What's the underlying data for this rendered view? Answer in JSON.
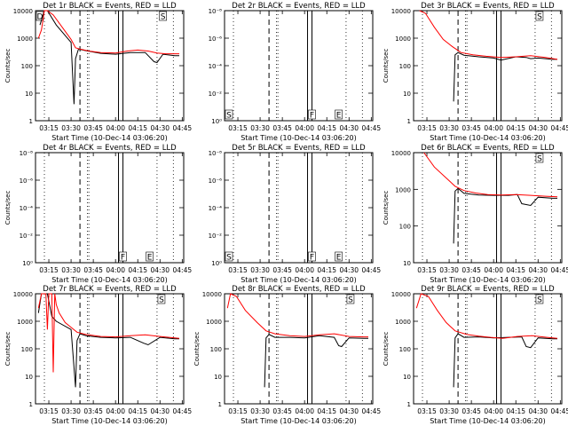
{
  "chart_data": [
    {
      "type": "line",
      "title": "Det 1r BLACK = Events, RED = LLD",
      "xlabel": "Start Time (10-Dec-14 03:06:20)",
      "ylabel": "Counts/sec",
      "ytick_labels": [
        "1",
        "10",
        "100",
        "1000",
        "10000"
      ],
      "yscale": "log",
      "ylim": [
        1,
        10000
      ],
      "xtick_labels": [
        "03:15",
        "03:30",
        "03:45",
        "04:00",
        "04:15",
        "04:30",
        "04:45"
      ],
      "flags": [
        {
          "label": "D",
          "t": "03:06"
        },
        {
          "label": "S",
          "t": "04:29"
        }
      ],
      "series": [
        {
          "color": "#000000",
          "x": [
            "03:09",
            "03:12",
            "03:14",
            "03:20",
            "03:30",
            "03:32",
            "03:33",
            "03:35",
            "03:40",
            "03:50",
            "04:00",
            "04:10",
            "04:20",
            "04:26",
            "04:28",
            "04:32",
            "04:40",
            "04:43"
          ],
          "y": [
            3000,
            10000,
            10000,
            3000,
            700,
            4,
            180,
            400,
            350,
            280,
            260,
            300,
            300,
            140,
            130,
            260,
            230,
            230
          ]
        },
        {
          "color": "#ff0000",
          "x": [
            "03:08",
            "03:10",
            "03:12",
            "03:14",
            "03:18",
            "03:24",
            "03:30",
            "03:33",
            "03:36",
            "03:42",
            "03:50",
            "04:00",
            "04:08",
            "04:15",
            "04:22",
            "04:28",
            "04:34",
            "04:40",
            "04:43"
          ],
          "y": [
            1000,
            2000,
            10000,
            10000,
            7000,
            2500,
            900,
            450,
            400,
            340,
            300,
            290,
            340,
            370,
            340,
            290,
            270,
            270,
            270
          ]
        }
      ]
    },
    {
      "type": "line",
      "title": "Det 2r BLACK = Events, RED = LLD",
      "xlabel": "Start Time (10-Dec-14 03:06:20)",
      "ylabel": "",
      "ytick_labels": [
        "10⁰",
        "10⁻²",
        "10⁻⁴",
        "10⁻⁶",
        "10⁻⁸"
      ],
      "yscale": "log",
      "xtick_labels": [
        "03:15",
        "03:30",
        "03:45",
        "04:00",
        "04:15",
        "04:30",
        "04:45"
      ],
      "flags": [
        {
          "label": "S",
          "t": "03:06"
        },
        {
          "label": "F",
          "t": "04:02"
        },
        {
          "label": "E",
          "t": "04:20"
        }
      ],
      "series": []
    },
    {
      "type": "line",
      "title": "Det 3r BLACK = Events, RED = LLD",
      "xlabel": "Start Time (10-Dec-14 03:06:20)",
      "ylabel": "Counts/sec",
      "ytick_labels": [
        "1",
        "10",
        "100",
        "1000",
        "10000"
      ],
      "yscale": "log",
      "ylim": [
        1,
        10000
      ],
      "xtick_labels": [
        "03:15",
        "03:30",
        "03:45",
        "04:00",
        "04:15",
        "04:30",
        "04:45"
      ],
      "flags": [
        {
          "label": "S",
          "t": "04:28"
        }
      ],
      "series": [
        {
          "color": "#000000",
          "x": [
            "03:33",
            "03:34",
            "03:36",
            "03:40",
            "03:50",
            "04:00",
            "04:05",
            "04:15",
            "04:22",
            "04:25",
            "04:30",
            "04:40",
            "04:43"
          ],
          "y": [
            5,
            250,
            300,
            240,
            210,
            190,
            160,
            210,
            200,
            180,
            190,
            170,
            170
          ]
        },
        {
          "color": "#ff0000",
          "x": [
            "03:10",
            "03:14",
            "03:20",
            "03:26",
            "03:32",
            "03:38",
            "03:46",
            "03:55",
            "04:05",
            "04:15",
            "04:25",
            "04:35",
            "04:43"
          ],
          "y": [
            10000,
            8000,
            2500,
            900,
            500,
            300,
            250,
            220,
            200,
            210,
            230,
            200,
            170
          ]
        }
      ]
    },
    {
      "type": "line",
      "title": "Det 4r BLACK = Events, RED = LLD",
      "xlabel": "Start Time (10-Dec-14 03:06:20)",
      "ylabel": "Counts/sec",
      "ytick_labels": [
        "10⁰",
        "10⁻²",
        "10⁻⁴",
        "10⁻⁶",
        "10⁻⁸"
      ],
      "yscale": "log",
      "xtick_labels": [
        "03:15",
        "03:30",
        "03:45",
        "04:00",
        "04:15",
        "04:30",
        "04:45"
      ],
      "flags": [
        {
          "label": "F",
          "t": "04:02"
        },
        {
          "label": "E",
          "t": "04:20"
        }
      ],
      "series": []
    },
    {
      "type": "line",
      "title": "Det 5r BLACK = Events, RED = LLD",
      "xlabel": "Start Time (10-Dec-14 03:06:20)",
      "ylabel": "",
      "ytick_labels": [
        "10⁰",
        "10⁻²",
        "10⁻⁴",
        "10⁻⁶",
        "10⁻⁸"
      ],
      "yscale": "log",
      "xtick_labels": [
        "03:15",
        "03:30",
        "03:45",
        "04:00",
        "04:15",
        "04:30",
        "04:45"
      ],
      "flags": [
        {
          "label": "S",
          "t": "03:06"
        },
        {
          "label": "F",
          "t": "04:02"
        },
        {
          "label": "E",
          "t": "04:20"
        }
      ],
      "series": []
    },
    {
      "type": "line",
      "title": "Det 6r BLACK = Events, RED = LLD",
      "xlabel": "Start Time (10-Dec-14 03:06:20)",
      "ylabel": "Counts/sec",
      "ytick_labels": [
        "10",
        "100",
        "1000",
        "10000"
      ],
      "yscale": "log",
      "ylim": [
        1,
        10000
      ],
      "xtick_labels": [
        "03:15",
        "03:30",
        "03:45",
        "04:00",
        "04:15",
        "04:30",
        "04:45"
      ],
      "flags": [
        {
          "label": "S",
          "t": "04:28"
        }
      ],
      "series": [
        {
          "color": "#000000",
          "x": [
            "03:33",
            "03:34",
            "03:36",
            "03:40",
            "03:50",
            "04:00",
            "04:10",
            "04:16",
            "04:19",
            "04:25",
            "04:30",
            "04:40",
            "04:43"
          ],
          "y": [
            5,
            400,
            500,
            330,
            290,
            280,
            280,
            300,
            140,
            120,
            240,
            220,
            220
          ]
        },
        {
          "color": "#ff0000",
          "x": [
            "03:13",
            "03:20",
            "03:28",
            "03:34",
            "03:40",
            "03:48",
            "03:56",
            "04:05",
            "04:15",
            "04:25",
            "04:35",
            "04:43"
          ],
          "y": [
            10000,
            3000,
            1200,
            600,
            420,
            340,
            300,
            290,
            300,
            280,
            260,
            250
          ]
        }
      ]
    },
    {
      "type": "line",
      "title": "Det 7r BLACK = Events, RED = LLD",
      "xlabel": "Start Time (10-Dec-14 03:06:20)",
      "ylabel": "Counts/sec",
      "ytick_labels": [
        "1",
        "10",
        "100",
        "1000",
        "10000"
      ],
      "yscale": "log",
      "ylim": [
        1,
        10000
      ],
      "xtick_labels": [
        "03:15",
        "03:30",
        "03:45",
        "04:00",
        "04:15",
        "04:30",
        "04:45"
      ],
      "flags": [
        {
          "label": "S",
          "t": "04:28"
        }
      ],
      "series": [
        {
          "color": "#000000",
          "x": [
            "03:08",
            "03:10",
            "03:11",
            "03:14",
            "03:17",
            "03:20",
            "03:30",
            "03:33",
            "03:34",
            "03:36",
            "03:40",
            "03:50",
            "04:00",
            "04:10",
            "04:19",
            "04:22",
            "04:30",
            "04:40",
            "04:43"
          ],
          "y": [
            2000,
            10000,
            10000,
            10000,
            1500,
            1000,
            500,
            4,
            200,
            350,
            300,
            260,
            250,
            260,
            160,
            140,
            260,
            230,
            230
          ]
        },
        {
          "color": "#ff0000",
          "x": [
            "03:08",
            "03:10",
            "03:13",
            "03:14",
            "03:15",
            "03:16",
            "03:17",
            "03:18",
            "03:19",
            "03:20",
            "03:22",
            "03:26",
            "03:30",
            "03:34",
            "03:40",
            "03:50",
            "04:00",
            "04:10",
            "04:20",
            "04:30",
            "04:40",
            "04:43"
          ],
          "y": [
            3000,
            10000,
            10000,
            500,
            10000,
            10000,
            10000,
            14,
            10000,
            4000,
            2000,
            900,
            600,
            400,
            330,
            280,
            270,
            300,
            320,
            280,
            250,
            240
          ]
        }
      ]
    },
    {
      "type": "line",
      "title": "Det 8r BLACK = Events, RED = LLD",
      "xlabel": "Start Time (10-Dec-14 03:06:20)",
      "ylabel": "Counts/sec",
      "ytick_labels": [
        "1",
        "10",
        "100",
        "1000",
        "10000"
      ],
      "yscale": "log",
      "ylim": [
        1,
        10000
      ],
      "xtick_labels": [
        "03:15",
        "03:30",
        "03:45",
        "04:00",
        "04:15",
        "04:30",
        "04:45"
      ],
      "flags": [
        {
          "label": "S",
          "t": "04:28"
        }
      ],
      "series": [
        {
          "color": "#000000",
          "x": [
            "03:33",
            "03:34",
            "03:36",
            "03:40",
            "03:50",
            "04:00",
            "04:10",
            "04:20",
            "04:23",
            "04:25",
            "04:30",
            "04:40",
            "04:43"
          ],
          "y": [
            4,
            250,
            330,
            260,
            260,
            250,
            300,
            260,
            130,
            120,
            250,
            240,
            240
          ]
        },
        {
          "color": "#ff0000",
          "x": [
            "03:08",
            "03:10",
            "03:14",
            "03:20",
            "03:28",
            "03:34",
            "03:40",
            "03:50",
            "04:00",
            "04:10",
            "04:20",
            "04:30",
            "04:40",
            "04:43"
          ],
          "y": [
            3000,
            10000,
            8000,
            2500,
            900,
            450,
            350,
            300,
            280,
            320,
            350,
            280,
            270,
            270
          ]
        }
      ]
    },
    {
      "type": "line",
      "title": "Det 9r BLACK = Events, RED = LLD",
      "xlabel": "Start Time (10-Dec-14 03:06:20)",
      "ylabel": "Counts/sec",
      "ytick_labels": [
        "1",
        "10",
        "100",
        "1000",
        "10000"
      ],
      "yscale": "log",
      "ylim": [
        1,
        10000
      ],
      "xtick_labels": [
        "03:15",
        "03:30",
        "03:45",
        "04:00",
        "04:15",
        "04:30",
        "04:45"
      ],
      "flags": [
        {
          "label": "S",
          "t": "04:28"
        }
      ],
      "series": [
        {
          "color": "#000000",
          "x": [
            "03:33",
            "03:34",
            "03:36",
            "03:40",
            "03:50",
            "04:00",
            "04:10",
            "04:19",
            "04:22",
            "04:25",
            "04:30",
            "04:40",
            "04:43"
          ],
          "y": [
            4,
            250,
            350,
            260,
            270,
            250,
            260,
            270,
            120,
            110,
            250,
            230,
            230
          ]
        },
        {
          "color": "#ff0000",
          "x": [
            "03:08",
            "03:11",
            "03:16",
            "03:22",
            "03:28",
            "03:34",
            "03:42",
            "03:50",
            "03:58",
            "04:06",
            "04:16",
            "04:26",
            "04:36",
            "04:43"
          ],
          "y": [
            3000,
            10000,
            8000,
            2500,
            900,
            450,
            330,
            290,
            260,
            240,
            280,
            300,
            260,
            240
          ]
        }
      ]
    }
  ]
}
